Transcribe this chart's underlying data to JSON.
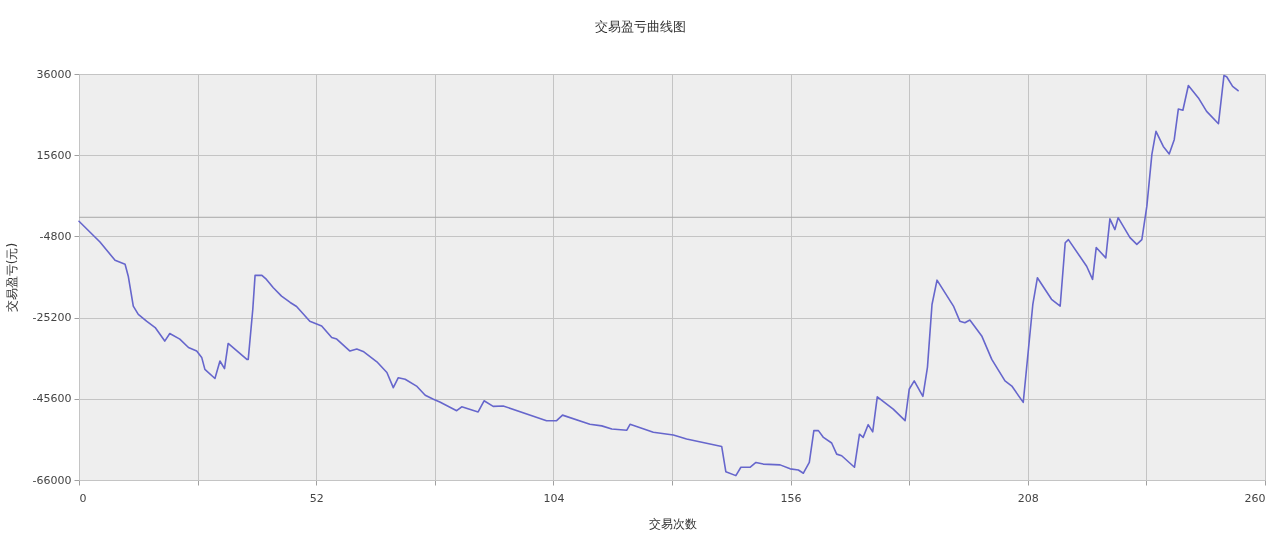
{
  "chart_data": {
    "type": "line",
    "title": "交易盈亏曲线图",
    "xlabel": "交易次数",
    "ylabel": "交易盈亏(元)",
    "x": [
      0,
      4.6,
      7.9,
      10.1,
      10.8,
      11.9,
      13.0,
      14.8,
      16.7,
      18.8,
      19.9,
      22.1,
      24.0,
      25.8,
      26.9,
      27.6,
      29.8,
      30.9,
      31.9,
      32.7,
      36.8,
      37.1,
      38.1,
      38.6,
      40.1,
      41.1,
      42.6,
      44.4,
      46.3,
      47.7,
      50.6,
      53.2,
      55.4,
      56.5,
      59.4,
      60.9,
      62.3,
      65.3,
      67.5,
      68.9,
      70.0,
      71.5,
      74.0,
      75.9,
      77.7,
      79.1,
      82.8,
      83.9,
      87.5,
      88.8,
      90.8,
      93.0,
      102.5,
      104.7,
      106.0,
      112.0,
      114.6,
      116.8,
      120.1,
      120.8,
      125.9,
      130.3,
      133.2,
      140.9,
      141.8,
      144.0,
      145.1,
      147.1,
      148.4,
      150.0,
      153.7,
      155.9,
      157.7,
      158.8,
      160.1,
      161.1,
      162.1,
      163.2,
      165.0,
      166.1,
      167.2,
      170.0,
      171.1,
      171.9,
      173.0,
      174.0,
      175.0,
      178.5,
      181.1,
      182.0,
      183.1,
      185.0,
      186.0,
      187.0,
      188.1,
      191.7,
      193.1,
      194.2,
      195.3,
      197.9,
      200.1,
      203.0,
      204.5,
      207.0,
      209.1,
      210.1,
      213.2,
      215.1,
      216.2,
      216.9,
      220.9,
      222.2,
      223.0,
      225.1,
      226.0,
      227.1,
      227.8,
      230.4,
      231.9,
      233.0,
      234.1,
      235.2,
      236.1,
      237.7,
      239.0,
      240.1,
      241.0,
      242.0,
      243.2,
      245.4,
      247.2,
      249.8,
      251.0,
      251.6,
      252.9,
      254.1
    ],
    "series": [
      {
        "color": "#6666cc",
        "values": [
          -1000,
          -6200,
          -10800,
          -11800,
          -14800,
          -22300,
          -24400,
          -26100,
          -27700,
          -31100,
          -29200,
          -30600,
          -32700,
          -33600,
          -35200,
          -38200,
          -40500,
          -36100,
          -38000,
          -31700,
          -35700,
          -35700,
          -23100,
          -14600,
          -14600,
          -15600,
          -17700,
          -19800,
          -21400,
          -22400,
          -26100,
          -27300,
          -30200,
          -30600,
          -33600,
          -33100,
          -33700,
          -36300,
          -39000,
          -42800,
          -40300,
          -40700,
          -42400,
          -44700,
          -45700,
          -46400,
          -48600,
          -47600,
          -48900,
          -46100,
          -47500,
          -47400,
          -51100,
          -51100,
          -49700,
          -52000,
          -52400,
          -53200,
          -53500,
          -52000,
          -54000,
          -54700,
          -55700,
          -57600,
          -63900,
          -64900,
          -62800,
          -62800,
          -61600,
          -62000,
          -62200,
          -63200,
          -63500,
          -64300,
          -61600,
          -53600,
          -53600,
          -55300,
          -56700,
          -59500,
          -59900,
          -62800,
          -54500,
          -55300,
          -52100,
          -53900,
          -45100,
          -48200,
          -51100,
          -43200,
          -41100,
          -45000,
          -37700,
          -21900,
          -15800,
          -22300,
          -26100,
          -26500,
          -25800,
          -29800,
          -35700,
          -41100,
          -42400,
          -46500,
          -21900,
          -15200,
          -20600,
          -22300,
          -6400,
          -5600,
          -12300,
          -15600,
          -7600,
          -10200,
          -400,
          -3100,
          -100,
          -5100,
          -6800,
          -5600,
          2800,
          15800,
          21600,
          17800,
          15900,
          19500,
          27200,
          26900,
          33100,
          30000,
          26600,
          23500,
          35600,
          35300,
          32900,
          31800
        ]
      }
    ],
    "xlim": [
      0,
      260
    ],
    "xticks": [
      0,
      {
        "value": 26,
        "label": null
      },
      52,
      {
        "value": 78,
        "label": null
      },
      104,
      {
        "value": 130,
        "label": null
      },
      156,
      {
        "value": 182,
        "label": null
      },
      208,
      {
        "value": 234,
        "label": null
      },
      260
    ],
    "ylim": [
      -66000,
      36000
    ],
    "yticks": [
      36000,
      15600,
      -4800,
      -25200,
      -45600,
      -66000
    ],
    "grid": true,
    "line_style": "solid",
    "ref_lines": [
      {
        "axis": "y",
        "value": 0,
        "color": "#a8a8a8"
      }
    ]
  }
}
